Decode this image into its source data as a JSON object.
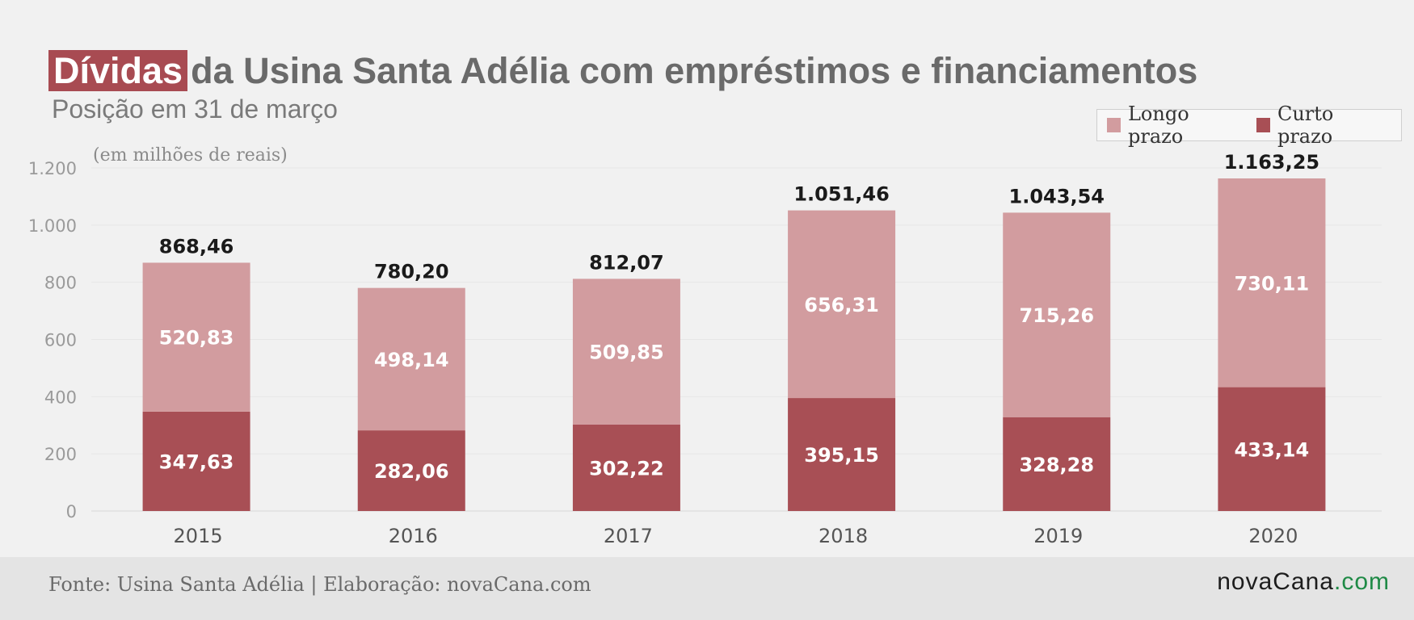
{
  "header": {
    "title_highlight": "Dívidas",
    "title_rest": "da Usina Santa Adélia com empréstimos e financiamentos",
    "subtitle": "Posição em 31 de março"
  },
  "legend": {
    "items": [
      {
        "label": "Longo prazo",
        "color": "#d29c9f"
      },
      {
        "label": "Curto prazo",
        "color": "#a84f55"
      }
    ]
  },
  "footer": {
    "source": "Fonte: Usina Santa Adélia | Elaboração: novaCana.com",
    "brand_name": "novaCana",
    "brand_tld": ".com"
  },
  "chart_data": {
    "type": "bar",
    "stacked": true,
    "unit_label": "(em milhões de reais)",
    "categories": [
      "2015",
      "2016",
      "2017",
      "2018",
      "2019",
      "2020"
    ],
    "series": [
      {
        "name": "Curto prazo",
        "color": "#a84f55",
        "values": [
          347.63,
          282.06,
          302.22,
          395.15,
          328.28,
          433.14
        ],
        "labels": [
          "347,63",
          "282,06",
          "302,22",
          "395,15",
          "328,28",
          "433,14"
        ]
      },
      {
        "name": "Longo prazo",
        "color": "#d29c9f",
        "values": [
          520.83,
          498.14,
          509.85,
          656.31,
          715.26,
          730.11
        ],
        "labels": [
          "520,83",
          "498,14",
          "509,85",
          "656,31",
          "715,26",
          "730,11"
        ]
      }
    ],
    "totals": [
      868.46,
      780.2,
      812.07,
      1051.46,
      1043.54,
      1163.25
    ],
    "total_labels": [
      "868,46",
      "780,20",
      "812,07",
      "1.051,46",
      "1.043,54",
      "1.163,25"
    ],
    "ylim": [
      0,
      1200
    ],
    "yticks": [
      0,
      200,
      400,
      600,
      800,
      1000,
      1200
    ],
    "ytick_labels": [
      "0",
      "200",
      "400",
      "600",
      "800",
      "1.000",
      "1.200"
    ],
    "grid": true,
    "legend_position": "top-right"
  }
}
